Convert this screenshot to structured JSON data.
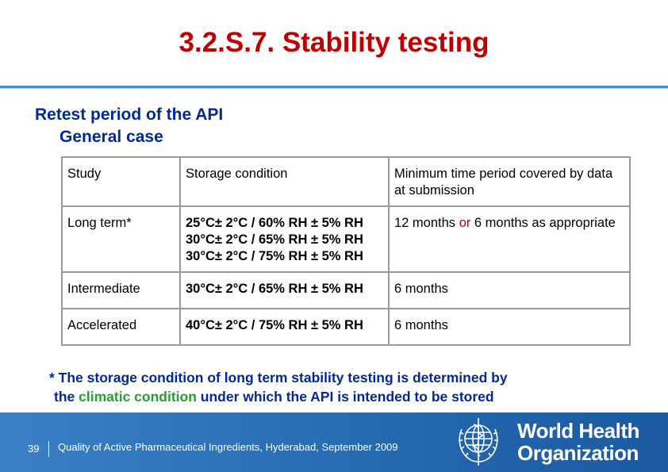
{
  "slide": {
    "title": "3.2.S.7. Stability testing",
    "heading": "Retest period of the API",
    "subheading": "General case"
  },
  "table": {
    "headers": [
      "Study",
      "Storage condition",
      "Minimum time period covered by data at submission"
    ],
    "rows": [
      {
        "study": "Long term*",
        "conditions": [
          "25°C± 2°C / 60% RH ± 5% RH",
          "30°C± 2°C / 65% RH ± 5% RH",
          "30°C± 2°C / 75% RH ± 5% RH"
        ],
        "period_a": "12 months",
        "period_or": "or",
        "period_b": "6 months as appropriate"
      },
      {
        "study": "Intermediate",
        "conditions": [
          "30°C± 2°C / 65% RH ± 5% RH"
        ],
        "period": "6 months"
      },
      {
        "study": "Accelerated",
        "conditions": [
          "40°C± 2°C / 75% RH ± 5% RH"
        ],
        "period": "6 months"
      }
    ]
  },
  "footnote": {
    "line1": "* The storage condition of long term stability testing is determined by",
    "line2_pre": "the",
    "line2_green": "climatic condition",
    "line2_post": "under which the API is intended to be stored"
  },
  "footer": {
    "page_number": "39",
    "text": "Quality of Active Pharmaceutical Ingredients, Hyderabad, September 2009",
    "org_line1": "World Health",
    "org_line2": "Organization",
    "bg_color": "#2468b0",
    "logo": "who-emblem-icon"
  },
  "colors": {
    "title": "#c00000",
    "heading": "#002a99",
    "highlight_green": "#22a030"
  }
}
